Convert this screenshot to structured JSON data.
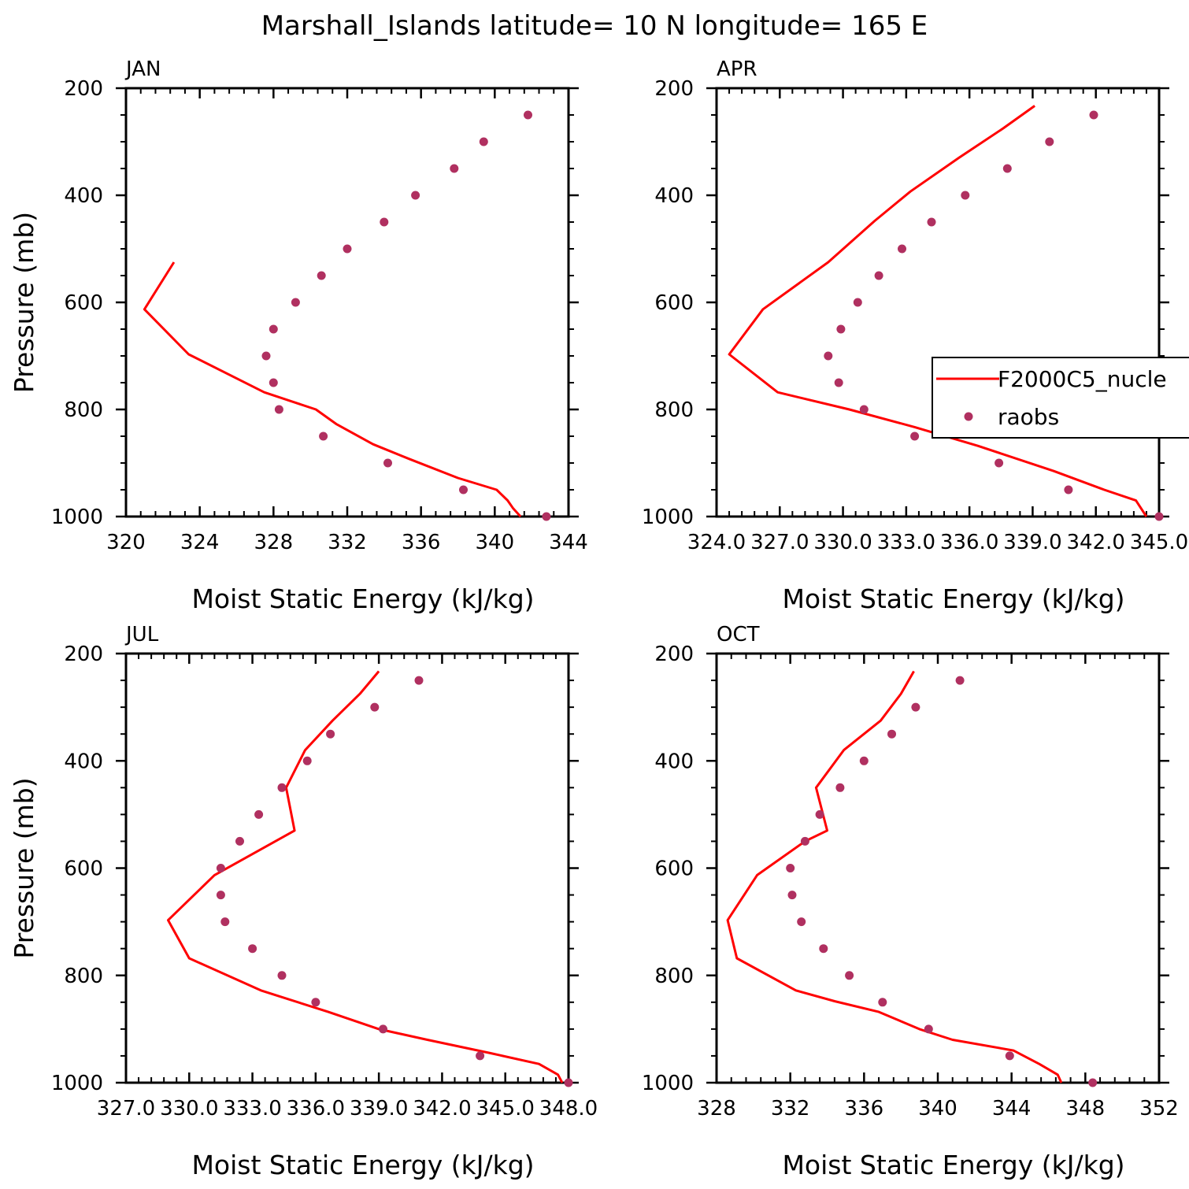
{
  "title": "Marshall_Islands  latitude= 10 N longitude= 165 E",
  "legend": {
    "placement": "right-middle of APR panel",
    "entries": [
      {
        "label": "F2000C5_nucle",
        "kind": "line",
        "color": "#ff0000"
      },
      {
        "label": "raobs",
        "kind": "marker",
        "color": "#b03060"
      }
    ]
  },
  "colors": {
    "model_line": "#ff0000",
    "obs_marker": "#b03060",
    "axis": "#000000"
  },
  "chart_data": [
    {
      "type": "line",
      "panel": "JAN",
      "title": "JAN",
      "xlabel": "Moist Static Energy (kJ/kg)",
      "ylabel": "Pressure (mb)",
      "xlim": [
        320,
        344
      ],
      "ylim": [
        1000,
        200
      ],
      "x_ticks": [
        320,
        324,
        328,
        332,
        336,
        340,
        344
      ],
      "x_tick_labels": [
        "320",
        "324",
        "328",
        "332",
        "336",
        "340",
        "344"
      ],
      "y_ticks": [
        200,
        400,
        600,
        800,
        1000
      ],
      "y_tick_labels": [
        "200",
        "400",
        "600",
        "800",
        "1000"
      ],
      "grid": false,
      "series": [
        {
          "name": "F2000C5_nucle",
          "style": "line",
          "x": [
            341.4,
            341.0,
            340.7,
            340.1,
            338.0,
            335.4,
            333.4,
            331.4,
            330.3,
            327.5,
            323.4,
            321.0,
            322.6
          ],
          "y": [
            1000,
            985,
            970,
            950,
            928,
            893,
            865,
            827,
            800,
            768,
            697,
            613,
            525
          ]
        },
        {
          "name": "raobs",
          "style": "marker",
          "x": [
            342.8,
            338.3,
            334.2,
            330.7,
            328.3,
            328.0,
            327.6,
            328.0,
            329.2,
            330.6,
            332.0,
            334.0,
            335.7,
            337.8,
            339.4,
            341.8
          ],
          "y": [
            1000,
            950,
            900,
            850,
            800,
            750,
            700,
            650,
            600,
            550,
            500,
            450,
            400,
            350,
            300,
            250
          ]
        }
      ]
    },
    {
      "type": "line",
      "panel": "APR",
      "title": "APR",
      "xlabel": "Moist Static Energy (kJ/kg)",
      "ylabel": "",
      "xlim": [
        324,
        345
      ],
      "ylim": [
        1000,
        200
      ],
      "x_ticks": [
        324,
        327,
        330,
        333,
        336,
        339,
        342,
        345
      ],
      "x_tick_labels": [
        "324.0",
        "327.0",
        "330.0",
        "333.0",
        "336.0",
        "339.0",
        "342.0",
        "345.0"
      ],
      "y_ticks": [
        200,
        400,
        600,
        800,
        1000
      ],
      "y_tick_labels": [
        "200",
        "400",
        "600",
        "800",
        "1000"
      ],
      "grid": false,
      "series": [
        {
          "name": "F2000C5_nucle",
          "style": "line",
          "x": [
            344.4,
            343.9,
            342.4,
            340.0,
            336.4,
            333.4,
            330.3,
            326.9,
            324.6,
            326.2,
            329.3,
            331.5,
            333.2,
            335.5,
            337.6,
            339.1
          ],
          "y": [
            1000,
            970,
            950,
            915,
            868,
            833,
            800,
            768,
            697,
            613,
            525,
            448,
            393,
            330,
            275,
            233
          ]
        },
        {
          "name": "raobs",
          "style": "marker",
          "x": [
            345.0,
            340.7,
            337.4,
            333.4,
            331.0,
            329.8,
            329.3,
            329.9,
            330.7,
            331.7,
            332.8,
            334.2,
            335.8,
            337.8,
            339.8,
            341.9
          ],
          "y": [
            1000,
            950,
            900,
            850,
            800,
            750,
            700,
            650,
            600,
            550,
            500,
            450,
            400,
            350,
            300,
            250
          ]
        }
      ]
    },
    {
      "type": "line",
      "panel": "JUL",
      "title": "JUL",
      "xlabel": "Moist Static Energy (kJ/kg)",
      "ylabel": "Pressure (mb)",
      "xlim": [
        327,
        348
      ],
      "ylim": [
        1000,
        200
      ],
      "x_ticks": [
        327,
        330,
        333,
        336,
        339,
        342,
        345,
        348
      ],
      "x_tick_labels": [
        "327.0",
        "330.0",
        "333.0",
        "336.0",
        "339.0",
        "342.0",
        "345.0",
        "348.0"
      ],
      "y_ticks": [
        200,
        400,
        600,
        800,
        1000
      ],
      "y_tick_labels": [
        "200",
        "400",
        "600",
        "800",
        "1000"
      ],
      "grid": false,
      "series": [
        {
          "name": "F2000C5_nucle",
          "style": "line",
          "x": [
            347.7,
            347.5,
            346.6,
            344.3,
            341.3,
            339.0,
            336.6,
            333.4,
            330.0,
            329.0,
            331.2,
            335.0,
            334.6,
            335.5,
            336.8,
            338.1,
            339.0
          ],
          "y": [
            1000,
            985,
            965,
            945,
            920,
            900,
            868,
            828,
            768,
            697,
            613,
            530,
            450,
            380,
            325,
            275,
            233
          ]
        },
        {
          "name": "raobs",
          "style": "marker",
          "x": [
            348.0,
            343.8,
            339.2,
            336.0,
            334.4,
            333.0,
            331.7,
            331.5,
            331.5,
            332.4,
            333.3,
            334.4,
            335.6,
            336.7,
            338.8,
            340.9
          ],
          "y": [
            1000,
            950,
            900,
            850,
            800,
            750,
            700,
            650,
            600,
            550,
            500,
            450,
            400,
            350,
            300,
            250
          ]
        }
      ]
    },
    {
      "type": "line",
      "panel": "OCT",
      "title": "OCT",
      "xlabel": "Moist Static Energy (kJ/kg)",
      "ylabel": "",
      "xlim": [
        328,
        352
      ],
      "ylim": [
        1000,
        200
      ],
      "x_ticks": [
        328,
        332,
        336,
        340,
        344,
        348,
        352
      ],
      "x_tick_labels": [
        "328",
        "332",
        "336",
        "340",
        "344",
        "348",
        "352"
      ],
      "y_ticks": [
        200,
        400,
        600,
        800,
        1000
      ],
      "y_tick_labels": [
        "200",
        "400",
        "600",
        "800",
        "1000"
      ],
      "grid": false,
      "series": [
        {
          "name": "F2000C5_nucle",
          "style": "line",
          "x": [
            346.7,
            346.5,
            345.5,
            344.1,
            340.8,
            339.0,
            336.8,
            334.4,
            332.3,
            329.1,
            328.6,
            330.2,
            332.8,
            334.0,
            333.4,
            334.9,
            336.9,
            338.0,
            338.7
          ],
          "y": [
            1000,
            985,
            965,
            940,
            920,
            900,
            868,
            848,
            828,
            768,
            697,
            613,
            550,
            530,
            450,
            380,
            325,
            275,
            233
          ]
        },
        {
          "name": "raobs",
          "style": "marker",
          "x": [
            348.4,
            343.9,
            339.5,
            337.0,
            335.2,
            333.8,
            332.6,
            332.1,
            332.0,
            332.8,
            333.6,
            334.7,
            336.0,
            337.5,
            338.8,
            341.2
          ],
          "y": [
            1000,
            950,
            900,
            850,
            800,
            750,
            700,
            650,
            600,
            550,
            500,
            450,
            400,
            350,
            300,
            250
          ]
        }
      ]
    }
  ]
}
